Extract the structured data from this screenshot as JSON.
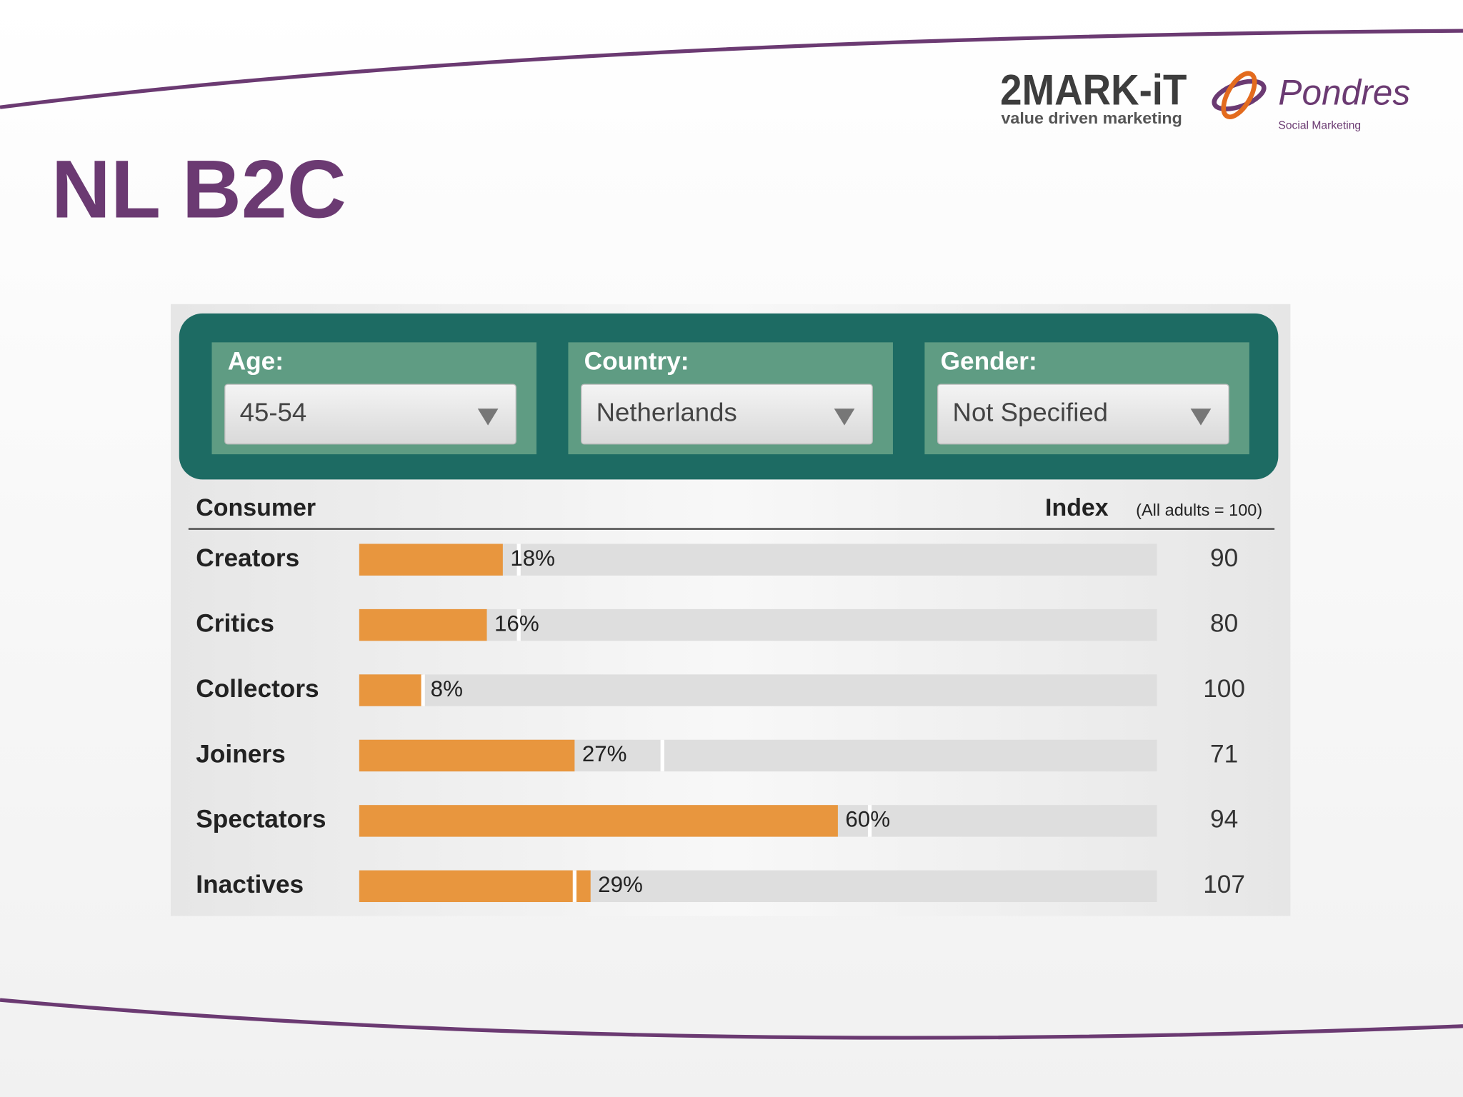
{
  "header": {
    "title": "NL B2C",
    "logo_left": "2MARK-iT",
    "logo_left_tagline": "value driven marketing",
    "logo_right": "Pondres",
    "logo_right_tagline": "Social Marketing"
  },
  "filters": [
    {
      "label": "Age:",
      "value": "45-54"
    },
    {
      "label": "Country:",
      "value": "Netherlands"
    },
    {
      "label": "Gender:",
      "value": "Not Specified"
    }
  ],
  "chart_data": {
    "type": "bar",
    "column_header": "Consumer",
    "index_header": "Index",
    "index_note": "(All adults = 100)",
    "categories": [
      "Creators",
      "Critics",
      "Collectors",
      "Joiners",
      "Spectators",
      "Inactives"
    ],
    "xlim": [
      0,
      100
    ],
    "series": [
      {
        "color": "#e8963e",
        "values": [
          18,
          16,
          8,
          27,
          60,
          29
        ],
        "value_labels": [
          "18%",
          "16%",
          "8%",
          "27%",
          "60%",
          "29%"
        ]
      }
    ],
    "reference_values": [
      20,
      20,
      8,
      38,
      64,
      27
    ],
    "index_values": [
      90,
      80,
      100,
      71,
      94,
      107
    ]
  }
}
